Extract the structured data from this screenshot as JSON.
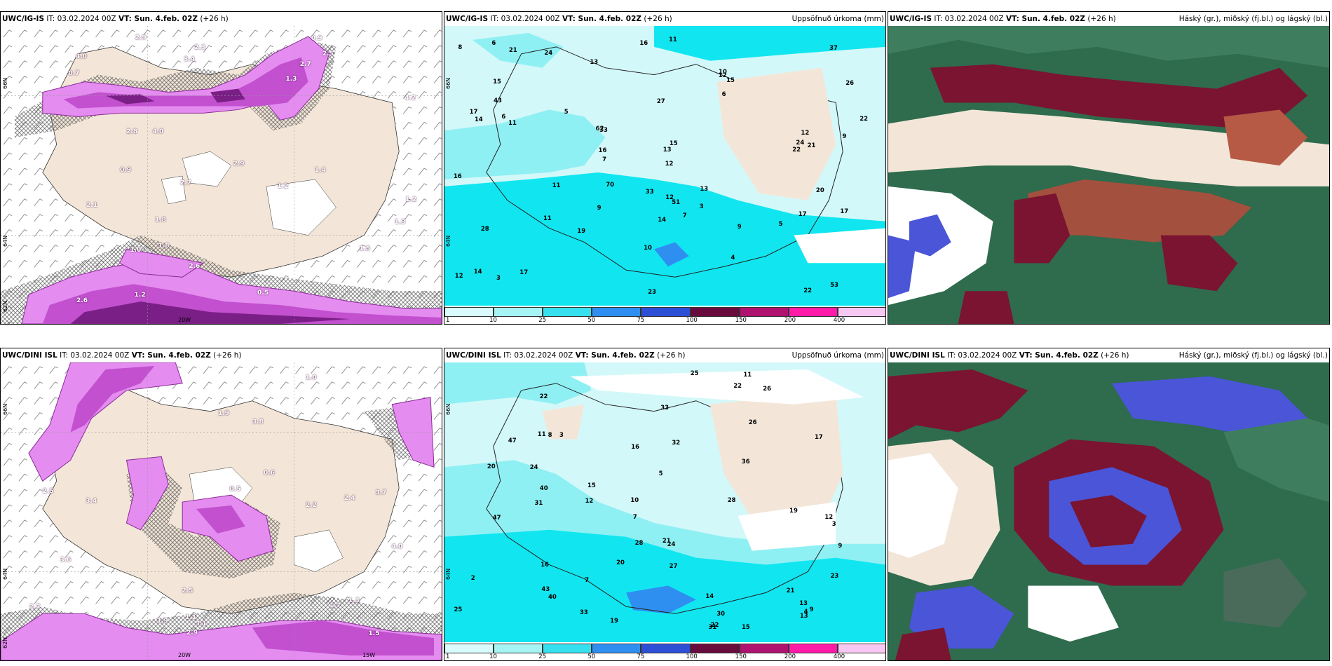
{
  "panels": {
    "p1": {
      "l_prefix": "UWC/IG-IS",
      "l_mid": " IT: 03.02.2024 00Z ",
      "l_bold": "VT: Sun. 4.feb. 02Z",
      "l_tail": " (+26 h)",
      "r": "",
      "lat_a": "66N",
      "lat_b": "64N",
      "lat_c": "62N",
      "lon_a": "20W"
    },
    "p2": {
      "l_prefix": "UWC/IG-IS",
      "l_mid": " IT: 03.02.2024 00Z ",
      "l_bold": "VT: Sun. 4.feb. 02Z",
      "l_tail": " (+26 h)",
      "r": "Uppsöfnuð úrkoma (mm)",
      "lat_a": "66N",
      "lat_b": "64N"
    },
    "p3": {
      "l_prefix": "UWC/IG-IS",
      "l_mid": " IT: 03.02.2024 00Z ",
      "l_bold": "VT: Sun. 4.feb. 02Z",
      "l_tail": " (+26 h)",
      "r": "Háský (gr.), miðský (fj.bl.) og lágský (bl.)"
    },
    "p4": {
      "l_prefix": "UWC/DINI ISL",
      "l_mid": " IT: 03.02.2024 00Z ",
      "l_bold": "VT: Sun. 4.feb. 02Z",
      "l_tail": " (+26 h)",
      "r": "",
      "lat_a": "66N",
      "lat_b": "64N",
      "lat_c": "62N",
      "lon_a": "20W",
      "lon_b": "15W"
    },
    "p5": {
      "l_prefix": "UWC/DINI ISL",
      "l_mid": " IT: 03.02.2024 00Z ",
      "l_bold": "VT: Sun. 4.feb. 02Z",
      "l_tail": " (+26 h)",
      "r": "Uppsöfnuð úrkoma (mm)",
      "lat_a": "66N",
      "lat_b": "64N"
    },
    "p6": {
      "l_prefix": "UWC/DINI ISL",
      "l_mid": " IT: 03.02.2024 00Z ",
      "l_bold": "VT: Sun. 4.feb. 02Z",
      "l_tail": " (+26 h)",
      "r": "Háský (gr.), miðský (fj.bl.) og lágský (bl.)"
    }
  },
  "colorbar": {
    "ticks": [
      "1",
      "10",
      "25",
      "50",
      "75",
      "100",
      "150",
      "200",
      "400"
    ],
    "colors": [
      "#d9fbfb",
      "#a6f4f4",
      "#37e0ee",
      "#2f8ff0",
      "#2d4fd6",
      "#6a0b3e",
      "#b0126f",
      "#ff1aa8",
      "#f8c8f2"
    ]
  },
  "precip_labels_top": [
    "33",
    "51",
    "62",
    "70",
    "53",
    "33",
    "22",
    "12",
    "37",
    "17",
    "6",
    "8",
    "7",
    "4",
    "3",
    "6",
    "11",
    "11",
    "10",
    "9",
    "3",
    "5",
    "9",
    "15",
    "13",
    "7",
    "14",
    "17",
    "12",
    "15",
    "6",
    "9",
    "11",
    "10",
    "5",
    "14",
    "13",
    "12",
    "12",
    "17",
    "16",
    "15",
    "13",
    "17",
    "21",
    "26",
    "19",
    "22",
    "27",
    "20",
    "24",
    "23",
    "16",
    "21",
    "11",
    "12",
    "43",
    "28",
    "24",
    "14",
    "16",
    "22"
  ],
  "precip_labels_bottom": [
    "30",
    "28",
    "47",
    "47",
    "40",
    "22",
    "16",
    "12",
    "15",
    "7",
    "25",
    "25",
    "26",
    "17",
    "11",
    "13",
    "4",
    "2",
    "3",
    "3",
    "9",
    "12",
    "7",
    "15",
    "19",
    "26",
    "22",
    "16",
    "10",
    "11",
    "21",
    "23",
    "14",
    "13",
    "5",
    "8",
    "9",
    "24",
    "20",
    "22",
    "33",
    "28",
    "43",
    "31",
    "36",
    "40",
    "27",
    "33",
    "32",
    "31",
    "24",
    "21",
    "19",
    "20"
  ],
  "snow_labels_top": [
    "1.0",
    "2.1",
    "0.5",
    "0.9",
    "2.5",
    "3.4",
    "4.2",
    "1.2",
    "1.5",
    "1.8",
    "1.2",
    "4.0",
    "2.6",
    "2.8",
    "0.7",
    "1.3",
    "2.7",
    "2.9",
    "1.8",
    "1.4",
    "1.3",
    "2.6",
    "1.2",
    "2.7",
    "2.9",
    "2.3",
    "4.0",
    "0.9"
  ],
  "snow_labels_bottom": [
    "3.8",
    "3.6",
    "1.9",
    "2.7",
    "1.5",
    "3.4",
    "4.0",
    "2.5",
    "1.0",
    "1.7",
    "2.4",
    "1.1",
    "1.3",
    "0.6",
    "0.5",
    "3.1",
    "2.2",
    "2.9",
    "3.7",
    "1.9",
    "2.5"
  ],
  "colors": {
    "land": "#f3e6d8",
    "snow_light": "#e48cf0",
    "snow_mid": "#c250cf",
    "snow_dark": "#7a1f86",
    "cyan_light": "#d3f8fa",
    "cyan_mid": "#8ff0f3",
    "cyan_bright": "#11e6f0",
    "cloud_high": "#2f6b4d",
    "cloud_mid": "#7a1431",
    "cloud_low": "#4a55d8"
  }
}
